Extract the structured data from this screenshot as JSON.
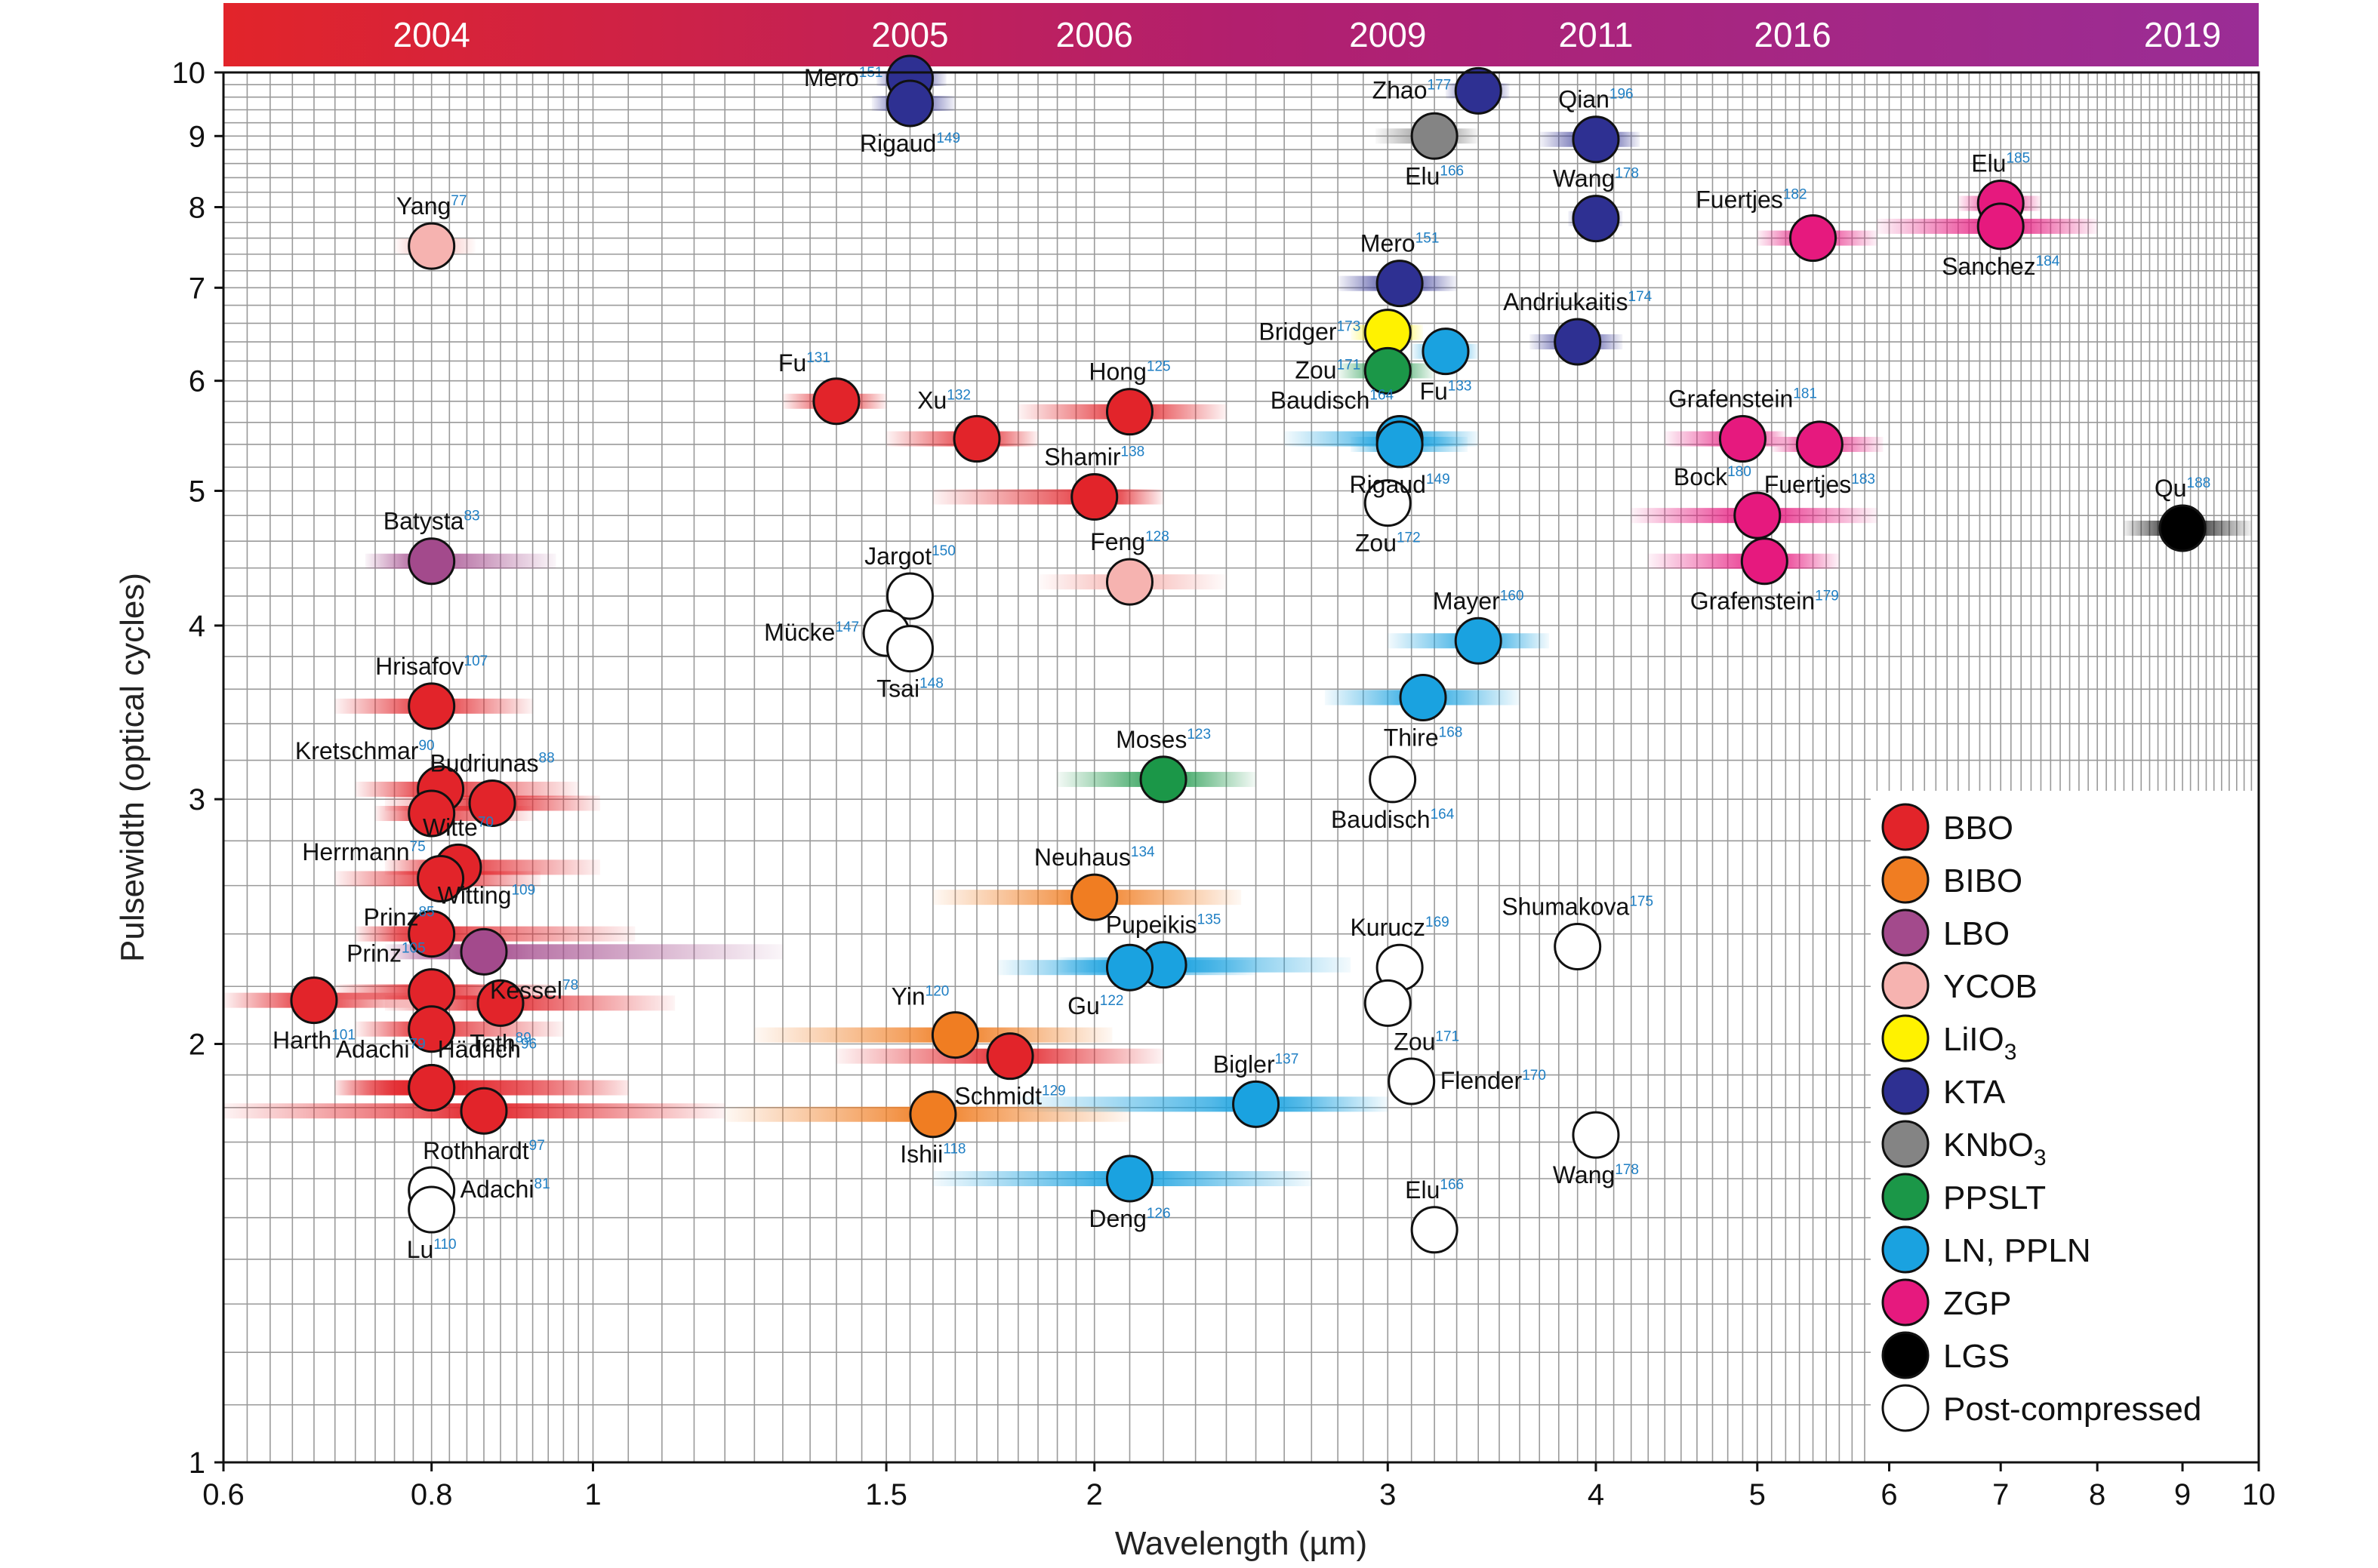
{
  "chart_data": {
    "type": "scatter",
    "title": "",
    "xlabel": "Wavelength (µm)",
    "ylabel": "Pulsewidth (optical cycles)",
    "x_scale": "log",
    "y_scale": "log",
    "xlim": [
      0.6,
      10
    ],
    "ylim": [
      1,
      10
    ],
    "x_ticks": [
      {
        "value": 0.6,
        "label": "0.6"
      },
      {
        "value": 0.8,
        "label": "0.8"
      },
      {
        "value": 1,
        "label": "1"
      },
      {
        "value": 1.5,
        "label": "1.5"
      },
      {
        "value": 2,
        "label": "2"
      },
      {
        "value": 3,
        "label": "3"
      },
      {
        "value": 4,
        "label": "4"
      },
      {
        "value": 5,
        "label": "5"
      },
      {
        "value": 6,
        "label": "6"
      },
      {
        "value": 7,
        "label": "7"
      },
      {
        "value": 8,
        "label": "8"
      },
      {
        "value": 9,
        "label": "9"
      },
      {
        "value": 10,
        "label": "10"
      }
    ],
    "y_ticks": [
      {
        "value": 1,
        "label": "1"
      },
      {
        "value": 2,
        "label": "2"
      },
      {
        "value": 3,
        "label": "3"
      },
      {
        "value": 4,
        "label": "4"
      },
      {
        "value": 5,
        "label": "5"
      },
      {
        "value": 6,
        "label": "6"
      },
      {
        "value": 7,
        "label": "7"
      },
      {
        "value": 8,
        "label": "8"
      },
      {
        "value": 9,
        "label": "9"
      },
      {
        "value": 10,
        "label": "10"
      }
    ],
    "grid": true,
    "timeline": [
      {
        "label": "2004",
        "x": 0.8
      },
      {
        "label": "2005",
        "x": 1.55
      },
      {
        "label": "2006",
        "x": 2.0
      },
      {
        "label": "2009",
        "x": 3.0
      },
      {
        "label": "2011",
        "x": 4.0
      },
      {
        "label": "2016",
        "x": 5.25
      },
      {
        "label": "2019",
        "x": 9.0
      }
    ],
    "timeline_colors": [
      "#e2242a",
      "#b21f6e",
      "#9a2d96"
    ],
    "legend": {
      "position": "bottom-right",
      "items": [
        {
          "key": "BBO",
          "label": "BBO",
          "color": "#e2242a"
        },
        {
          "key": "BIBO",
          "label": "BIBO",
          "color": "#f07d22"
        },
        {
          "key": "LBO",
          "label": "LBO",
          "color": "#a34a8c"
        },
        {
          "key": "YCOB",
          "label": "YCOB",
          "color": "#f6b3b0"
        },
        {
          "key": "LiIO3",
          "label": "LiIO",
          "sub": "3",
          "color": "#fff200"
        },
        {
          "key": "KTA",
          "label": "KTA",
          "color": "#2e3092"
        },
        {
          "key": "KNbO3",
          "label": "KNbO",
          "sub": "3",
          "color": "#848484"
        },
        {
          "key": "PPSLT",
          "label": "PPSLT",
          "color": "#1b9748"
        },
        {
          "key": "LN",
          "label": "LN, PPLN",
          "color": "#1aa2e0"
        },
        {
          "key": "ZGP",
          "label": "ZGP",
          "color": "#e6197e"
        },
        {
          "key": "LGS",
          "label": "LGS",
          "color": "#000000"
        },
        {
          "key": "post",
          "label": "Post-compressed",
          "color": "#ffffff"
        }
      ]
    },
    "points": [
      {
        "name": "Mero",
        "ref": "151",
        "crystal": "KTA",
        "x": 1.55,
        "y": 9.9,
        "xmin": 1.48,
        "xmax": 1.63,
        "label_pos": "left"
      },
      {
        "name": "Rigaud",
        "ref": "149",
        "crystal": "KTA",
        "x": 1.55,
        "y": 9.5,
        "xmin": 1.47,
        "xmax": 1.65,
        "label_pos": "below"
      },
      {
        "name": "Zhao",
        "ref": "177",
        "crystal": "KTA",
        "x": 3.4,
        "y": 9.7,
        "xmin": 3.25,
        "xmax": 3.55,
        "label_pos": "left"
      },
      {
        "name": "Elu",
        "ref": "166",
        "crystal": "KNbO3",
        "x": 3.2,
        "y": 9.0,
        "xmin": 2.95,
        "xmax": 3.4,
        "label_pos": "below"
      },
      {
        "name": "Qian",
        "ref": "196",
        "crystal": "KTA",
        "x": 4.0,
        "y": 8.95,
        "xmin": 3.7,
        "xmax": 4.25,
        "label_pos": "above"
      },
      {
        "name": "Wang",
        "ref": "178",
        "crystal": "KTA",
        "x": 4.0,
        "y": 7.85,
        "xmin": 3.85,
        "xmax": 4.15,
        "label_pos": "above"
      },
      {
        "name": "Yang",
        "ref": "77",
        "crystal": "YCOB",
        "x": 0.8,
        "y": 7.5,
        "xmin": 0.76,
        "xmax": 0.85,
        "label_pos": "above"
      },
      {
        "name": "Elu",
        "ref": "185",
        "crystal": "ZGP",
        "x": 7.0,
        "y": 8.05,
        "xmin": 6.6,
        "xmax": 7.4,
        "label_pos": "above"
      },
      {
        "name": "Fuertjes",
        "ref": "182",
        "crystal": "ZGP",
        "x": 5.4,
        "y": 7.6,
        "xmin": 5.0,
        "xmax": 5.9,
        "label_pos": "above-left"
      },
      {
        "name": "Sanchez",
        "ref": "184",
        "crystal": "ZGP",
        "x": 7.0,
        "y": 7.75,
        "xmin": 5.9,
        "xmax": 8.0,
        "label_pos": "below"
      },
      {
        "name": "Mero",
        "ref": "151",
        "crystal": "KTA",
        "x": 3.05,
        "y": 7.05,
        "xmin": 2.8,
        "xmax": 3.3,
        "label_pos": "above"
      },
      {
        "name": "Bridger",
        "ref": "173",
        "crystal": "LiIO3",
        "x": 3.0,
        "y": 6.5,
        "xmin": 2.85,
        "xmax": 3.15,
        "label_pos": "left"
      },
      {
        "name": "Andriukaitis",
        "ref": "174",
        "crystal": "KTA",
        "x": 3.9,
        "y": 6.4,
        "xmin": 3.65,
        "xmax": 4.15,
        "label_pos": "above"
      },
      {
        "name": "Zou",
        "ref": "171",
        "crystal": "PPSLT",
        "x": 3.0,
        "y": 6.1,
        "xmin": 2.8,
        "xmax": 3.2,
        "label_pos": "left"
      },
      {
        "name": "Fu",
        "ref": "133",
        "crystal": "LN",
        "x": 3.25,
        "y": 6.3,
        "xmin": 3.1,
        "xmax": 3.4,
        "label_pos": "below"
      },
      {
        "name": "Fu",
        "ref": "131",
        "crystal": "BBO",
        "x": 1.4,
        "y": 5.8,
        "xmin": 1.3,
        "xmax": 1.5,
        "label_pos": "above-left"
      },
      {
        "name": "Hong",
        "ref": "125",
        "crystal": "BBO",
        "x": 2.1,
        "y": 5.7,
        "xmin": 1.8,
        "xmax": 2.4,
        "label_pos": "above"
      },
      {
        "name": "Xu",
        "ref": "132",
        "crystal": "BBO",
        "x": 1.7,
        "y": 5.45,
        "xmin": 1.5,
        "xmax": 1.85,
        "label_pos": "above-left"
      },
      {
        "name": "Baudisch",
        "ref": "164",
        "crystal": "LN",
        "x": 3.05,
        "y": 5.45,
        "xmin": 2.6,
        "xmax": 3.4,
        "label_pos": "above-left"
      },
      {
        "name": "Rigaud",
        "ref": "149",
        "crystal": "LN",
        "x": 3.05,
        "y": 5.4,
        "xmin": 2.85,
        "xmax": 3.35,
        "label_pos": "below"
      },
      {
        "name": "Grafenstein",
        "ref": "181",
        "crystal": "ZGP",
        "x": 4.9,
        "y": 5.45,
        "xmin": 4.4,
        "xmax": 5.2,
        "label_pos": "above"
      },
      {
        "name": "Fuertjes",
        "ref": "183",
        "crystal": "ZGP",
        "x": 5.45,
        "y": 5.4,
        "xmin": 5.1,
        "xmax": 5.95,
        "label_pos": "below"
      },
      {
        "name": "Shamir",
        "ref": "138",
        "crystal": "BBO",
        "x": 2.0,
        "y": 4.95,
        "xmin": 1.6,
        "xmax": 2.2,
        "label_pos": "above"
      },
      {
        "name": "Zou",
        "ref": "172",
        "crystal": "post",
        "x": 3.0,
        "y": 4.9,
        "label_pos": "below"
      },
      {
        "name": "Bock",
        "ref": "180",
        "crystal": "ZGP",
        "x": 5.0,
        "y": 4.8,
        "xmin": 4.2,
        "xmax": 5.9,
        "label_pos": "above-left"
      },
      {
        "name": "Qu",
        "ref": "188",
        "crystal": "LGS",
        "x": 9.0,
        "y": 4.7,
        "xmin": 8.3,
        "xmax": 9.9,
        "label_pos": "above"
      },
      {
        "name": "Batysta",
        "ref": "83",
        "crystal": "LBO",
        "x": 0.8,
        "y": 4.45,
        "xmin": 0.73,
        "xmax": 0.95,
        "label_pos": "above"
      },
      {
        "name": "Grafenstein",
        "ref": "179",
        "crystal": "ZGP",
        "x": 5.05,
        "y": 4.45,
        "xmin": 4.3,
        "xmax": 5.6,
        "label_pos": "below"
      },
      {
        "name": "Jargot",
        "ref": "150",
        "crystal": "post",
        "x": 1.55,
        "y": 4.2,
        "label_pos": "above"
      },
      {
        "name": "Feng",
        "ref": "128",
        "crystal": "YCOB",
        "x": 2.1,
        "y": 4.3,
        "xmin": 1.85,
        "xmax": 2.4,
        "label_pos": "above"
      },
      {
        "name": "Mücke",
        "ref": "147",
        "crystal": "post",
        "x": 1.5,
        "y": 3.95,
        "label_pos": "left"
      },
      {
        "name": "Tsai",
        "ref": "148",
        "crystal": "post",
        "x": 1.55,
        "y": 3.85,
        "label_pos": "below"
      },
      {
        "name": "Mayer",
        "ref": "160",
        "crystal": "LN",
        "x": 3.4,
        "y": 3.9,
        "xmin": 3.0,
        "xmax": 3.75,
        "label_pos": "above"
      },
      {
        "name": "Thire",
        "ref": "168",
        "crystal": "LN",
        "x": 3.15,
        "y": 3.55,
        "xmin": 2.75,
        "xmax": 3.6,
        "label_pos": "below"
      },
      {
        "name": "Hrisafov",
        "ref": "107",
        "crystal": "BBO",
        "x": 0.8,
        "y": 3.5,
        "xmin": 0.7,
        "xmax": 0.92,
        "label_pos": "above"
      },
      {
        "name": "Moses",
        "ref": "123",
        "crystal": "PPSLT",
        "x": 2.2,
        "y": 3.1,
        "xmin": 1.9,
        "xmax": 2.5,
        "label_pos": "above"
      },
      {
        "name": "Baudisch",
        "ref": "164",
        "crystal": "post",
        "x": 3.02,
        "y": 3.1,
        "label_pos": "below"
      },
      {
        "name": "Kretschmar",
        "ref": "90",
        "crystal": "BBO",
        "x": 0.81,
        "y": 3.05,
        "xmin": 0.72,
        "xmax": 0.98,
        "label_pos": "above-left"
      },
      {
        "name": "Budriunas",
        "ref": "88",
        "crystal": "BBO",
        "x": 0.87,
        "y": 2.98,
        "xmin": 0.75,
        "xmax": 1.01,
        "label_pos": "above"
      },
      {
        "name": "Herrmann",
        "ref": "75",
        "crystal": "BBO",
        "x": 0.8,
        "y": 2.93,
        "xmin": 0.74,
        "xmax": 0.92,
        "label_pos": "below-left"
      },
      {
        "name": "Witte",
        "ref": "70",
        "crystal": "BBO",
        "x": 0.83,
        "y": 2.68,
        "xmin": 0.75,
        "xmax": 1.01,
        "label_pos": "above"
      },
      {
        "name": "Prinz",
        "ref": "85",
        "crystal": "BBO",
        "x": 0.81,
        "y": 2.63,
        "xmin": 0.7,
        "xmax": 0.93,
        "label_pos": "below-left"
      },
      {
        "name": "Neuhaus",
        "ref": "134",
        "crystal": "BIBO",
        "x": 2.0,
        "y": 2.55,
        "xmin": 1.6,
        "xmax": 2.45,
        "label_pos": "above"
      },
      {
        "name": "Witting",
        "ref": "109",
        "crystal": "BBO",
        "x": 0.8,
        "y": 2.4,
        "xmin": 0.72,
        "xmax": 1.06,
        "label_pos": "above-right"
      },
      {
        "name": "Shumakova",
        "ref": "175",
        "crystal": "post",
        "x": 3.9,
        "y": 2.35,
        "label_pos": "above"
      },
      {
        "name": "Kessel",
        "ref": "78",
        "crystal": "LBO",
        "x": 0.86,
        "y": 2.33,
        "xmin": 0.75,
        "xmax": 1.3,
        "label_pos": "below-right"
      },
      {
        "name": "Pupeikis",
        "ref": "135",
        "crystal": "LN",
        "x": 2.2,
        "y": 2.28,
        "xmin": 1.9,
        "xmax": 2.85,
        "label_pos": "above"
      },
      {
        "name": "Kurucz",
        "ref": "169",
        "crystal": "post",
        "x": 3.05,
        "y": 2.27,
        "label_pos": "above"
      },
      {
        "name": "Gu",
        "ref": "122",
        "crystal": "LN",
        "x": 2.1,
        "y": 2.27,
        "xmin": 1.75,
        "xmax": 2.5,
        "label_pos": "below-left"
      },
      {
        "name": "Prinz",
        "ref": "105",
        "crystal": "BBO",
        "x": 0.8,
        "y": 2.18,
        "xmin": 0.7,
        "xmax": 0.95,
        "label_pos": "above-left"
      },
      {
        "name": "Harth",
        "ref": "101",
        "crystal": "BBO",
        "x": 0.68,
        "y": 2.15,
        "xmin": 0.6,
        "xmax": 0.78,
        "label_pos": "below"
      },
      {
        "name": "Toth",
        "ref": "89",
        "crystal": "BBO",
        "x": 0.88,
        "y": 2.14,
        "xmin": 0.75,
        "xmax": 1.12,
        "label_pos": "below"
      },
      {
        "name": "Zou",
        "ref": "171",
        "crystal": "post",
        "x": 3.0,
        "y": 2.14,
        "label_pos": "below-right"
      },
      {
        "name": "Yin",
        "ref": "120",
        "crystal": "BIBO",
        "x": 1.65,
        "y": 2.03,
        "xmin": 1.25,
        "xmax": 2.05,
        "label_pos": "above-left"
      },
      {
        "name": "Schmidt",
        "ref": "129",
        "crystal": "BBO",
        "x": 1.78,
        "y": 1.96,
        "xmin": 1.4,
        "xmax": 2.2,
        "label_pos": "below"
      },
      {
        "name": "Harth",
        "ref": "101",
        "crystal": "BBO",
        "x": 0.8,
        "y": 2.05,
        "xmin": 0.72,
        "xmax": 0.96,
        "label_pos": "none"
      },
      {
        "name": "Adachi",
        "ref": "79",
        "crystal": "BBO",
        "x": 0.8,
        "y": 1.86,
        "xmin": 0.7,
        "xmax": 1.05,
        "label_pos": "above-left"
      },
      {
        "name": "Hädrich",
        "ref": "96",
        "crystal": "BBO",
        "x": 0.8,
        "y": 1.86,
        "xmin": 0.7,
        "xmax": 1.05,
        "label_pos": "above-right"
      },
      {
        "name": "Flender",
        "ref": "170",
        "crystal": "post",
        "x": 3.1,
        "y": 1.88,
        "label_pos": "right"
      },
      {
        "name": "Bigler",
        "ref": "137",
        "crystal": "LN",
        "x": 2.5,
        "y": 1.81,
        "xmin": 1.8,
        "xmax": 3.0,
        "label_pos": "above"
      },
      {
        "name": "Rothhardt",
        "ref": "97",
        "crystal": "BBO",
        "x": 0.86,
        "y": 1.79,
        "xmin": 0.6,
        "xmax": 1.2,
        "label_pos": "below"
      },
      {
        "name": "Ishii",
        "ref": "118",
        "crystal": "BIBO",
        "x": 1.6,
        "y": 1.78,
        "xmin": 1.2,
        "xmax": 2.1,
        "label_pos": "below"
      },
      {
        "name": "Wang",
        "ref": "178",
        "crystal": "post",
        "x": 4.0,
        "y": 1.72,
        "label_pos": "below"
      },
      {
        "name": "Deng",
        "ref": "126",
        "crystal": "LN",
        "x": 2.1,
        "y": 1.6,
        "xmin": 1.6,
        "xmax": 2.7,
        "label_pos": "below"
      },
      {
        "name": "Adachi",
        "ref": "81",
        "crystal": "post",
        "x": 0.8,
        "y": 1.57,
        "label_pos": "right"
      },
      {
        "name": "Lu",
        "ref": "110",
        "crystal": "post",
        "x": 0.8,
        "y": 1.52,
        "label_pos": "below"
      },
      {
        "name": "Elu",
        "ref": "166",
        "crystal": "post",
        "x": 3.2,
        "y": 1.47,
        "label_pos": "above"
      }
    ]
  }
}
